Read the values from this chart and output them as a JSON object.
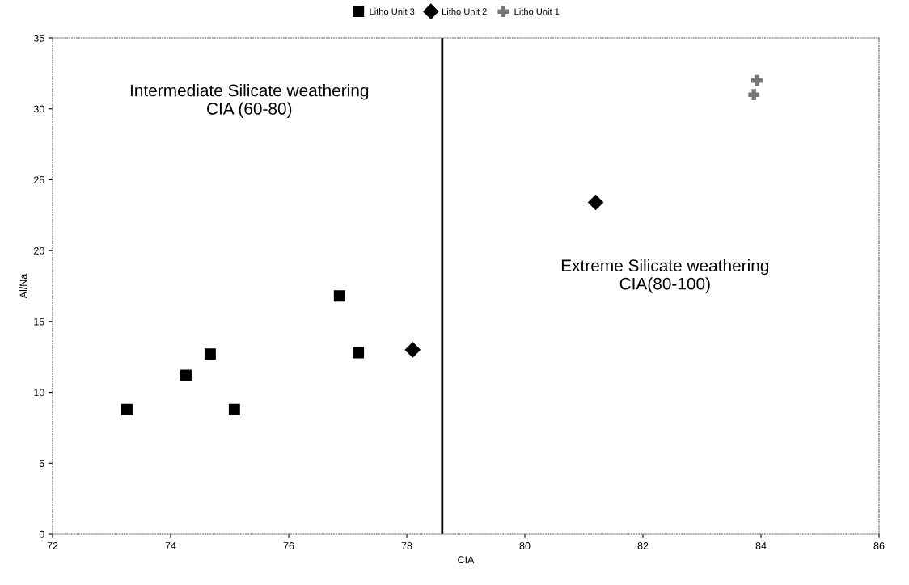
{
  "chart_data": {
    "type": "scatter",
    "xlabel": "CIA",
    "ylabel": "Al/Na",
    "xlim": [
      72,
      86
    ],
    "xticks": [
      72,
      74,
      76,
      78,
      80,
      82,
      84,
      86
    ],
    "ylim": [
      0,
      35
    ],
    "yticks": [
      0,
      5,
      10,
      15,
      20,
      25,
      30,
      35
    ],
    "grid": false,
    "legend": "top",
    "series": [
      {
        "name": "Litho Unit 3",
        "color": "#000000",
        "marker": "square",
        "x": [
          73.26,
          74.26,
          74.67,
          75.08,
          76.86,
          77.18
        ],
        "values": [
          8.8,
          11.2,
          12.7,
          8.8,
          16.8,
          12.8
        ]
      },
      {
        "name": "Litho Unit 2",
        "color": "#000000",
        "marker": "diamond",
        "x": [
          78.1,
          81.2
        ],
        "values": [
          13.0,
          23.4
        ]
      },
      {
        "name": "Litho Unit 1",
        "color": "#777777",
        "marker": "cross",
        "x": [
          83.88,
          83.93
        ],
        "values": [
          31.0,
          32.0
        ]
      }
    ],
    "ref_lines": [
      {
        "axis": "x",
        "value": 78.6,
        "color": "#000000",
        "line_style": "solid"
      }
    ],
    "annotations": [
      "Intermediate Silicate weathering\nCIA (60-80)",
      "Extreme Silicate weathering\nCIA(80-100)"
    ]
  }
}
